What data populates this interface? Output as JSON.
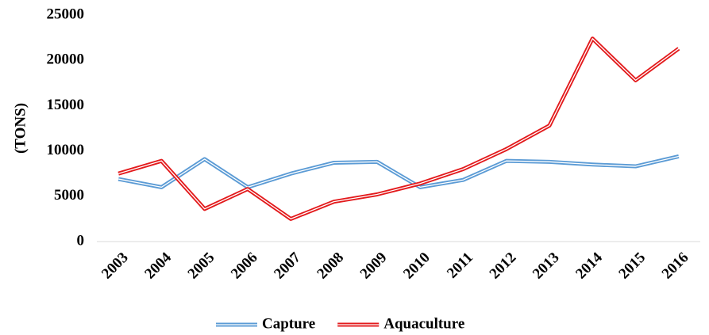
{
  "chart_data": {
    "type": "line",
    "y_label": "(TONS)",
    "categories": [
      "2003",
      "2004",
      "2005",
      "2006",
      "2007",
      "2008",
      "2009",
      "2010",
      "2011",
      "2012",
      "2013",
      "2014",
      "2015",
      "2016"
    ],
    "series": [
      {
        "name": "Capture",
        "color": "#5b9bd5",
        "values": [
          6900,
          6000,
          9100,
          6000,
          7500,
          8700,
          8800,
          6000,
          6800,
          8900,
          8800,
          8500,
          8300,
          9400
        ]
      },
      {
        "name": "Aquaculture",
        "color": "#e31a1c",
        "values": [
          7500,
          8900,
          3600,
          5800,
          2500,
          4400,
          5200,
          6400,
          8000,
          10200,
          12800,
          22400,
          17800,
          21300
        ]
      }
    ],
    "ylim": [
      0,
      25000
    ],
    "yticks": [
      0,
      5000,
      10000,
      15000,
      20000,
      25000
    ],
    "legend": "bottom"
  }
}
